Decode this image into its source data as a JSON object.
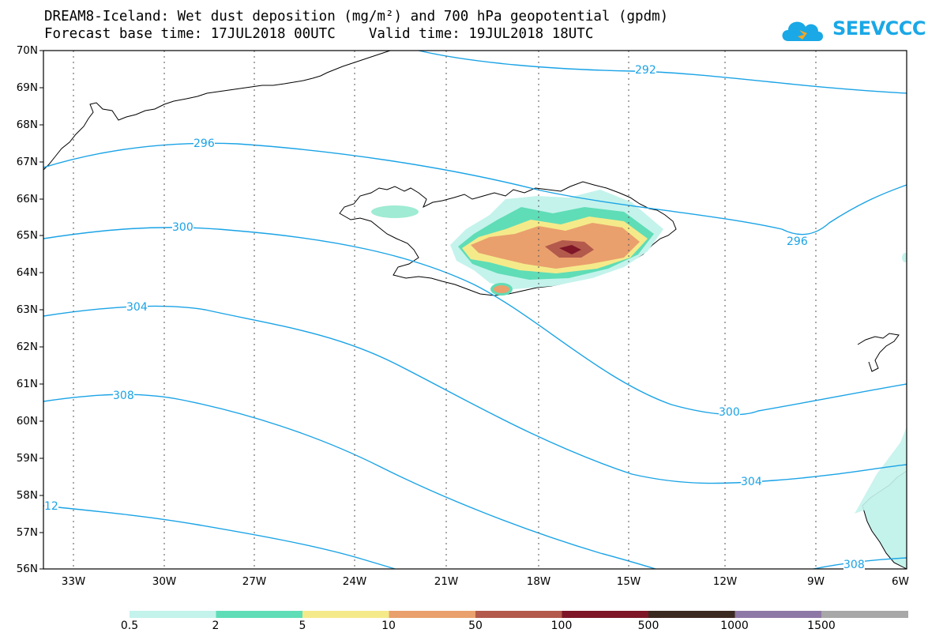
{
  "header": {
    "title_line1": "DREAM8-Iceland: Wet dust deposition (mg/m²) and 700 hPa geopotential (gpdm)",
    "title_line2": "Forecast base time: 17JUL2018 00UTC    Valid time: 19JUL2018 18UTC"
  },
  "logo": {
    "text": "SEEVCCC",
    "color": "#1aa8e6"
  },
  "map": {
    "lat_range": [
      56,
      70
    ],
    "lon_range": [
      -34.5,
      -6
    ],
    "lat_labels": [
      "70N",
      "69N",
      "68N",
      "67N",
      "66N",
      "65N",
      "64N",
      "63N",
      "62N",
      "61N",
      "60N",
      "59N",
      "58N",
      "57N",
      "56N"
    ],
    "lon_labels": [
      "33W",
      "30W",
      "27W",
      "24W",
      "21W",
      "18W",
      "15W",
      "12W",
      "9W",
      "6W"
    ],
    "contour_color": "#1aa3e6",
    "contour_labels": [
      "292",
      "296",
      "296",
      "300",
      "300",
      "304",
      "304",
      "308",
      "308",
      "12"
    ]
  },
  "colorbar": {
    "labels": [
      "0.5",
      "2",
      "5",
      "10",
      "50",
      "100",
      "500",
      "1000",
      "1500"
    ],
    "colors": [
      "#c4f3ec",
      "#5fddb6",
      "#f5ea8a",
      "#e9a06d",
      "#b35a4c",
      "#7e1628",
      "#3b2a20",
      "#8e78a6",
      "#a8a8a8"
    ]
  }
}
